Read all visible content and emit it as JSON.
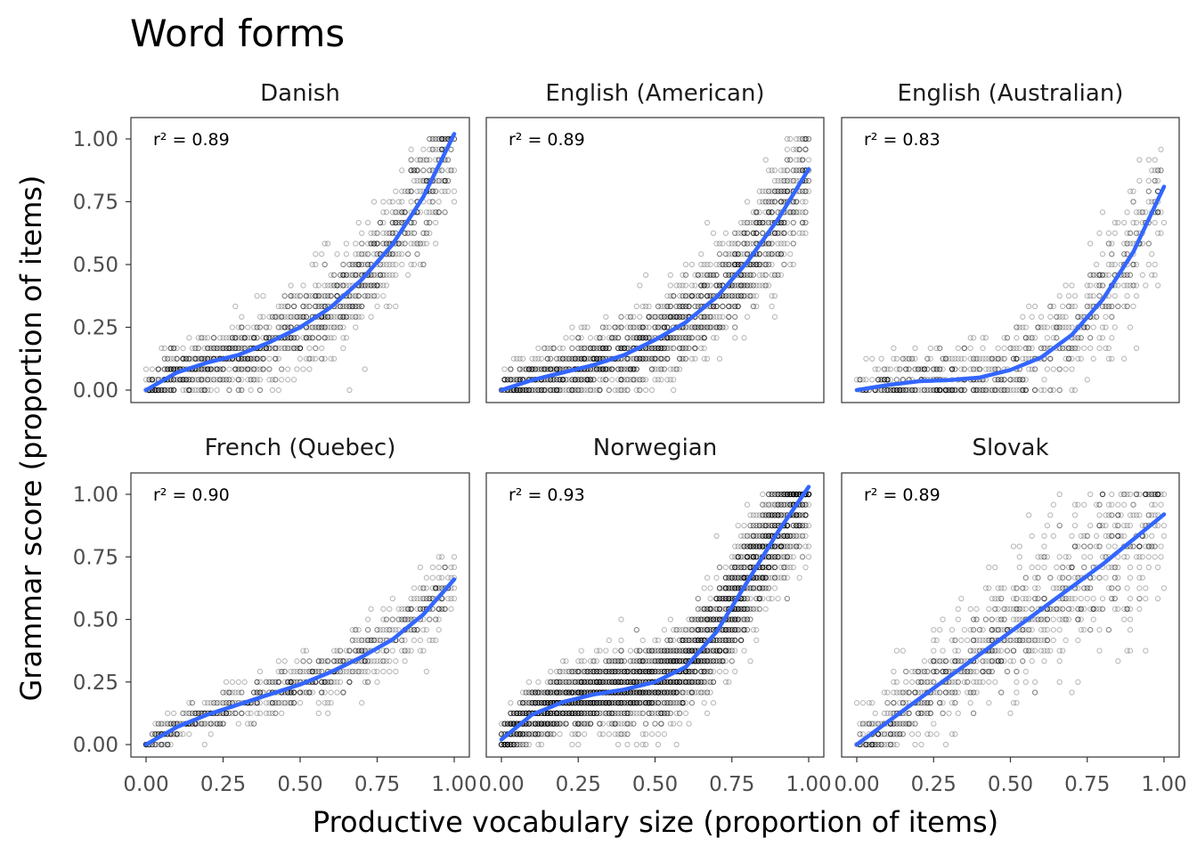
{
  "chart_data": {
    "type": "scatter",
    "title": "Word forms",
    "xlabel": "Productive vocabulary size (proportion of items)",
    "ylabel": "Grammar score (proportion of items)",
    "xlim": [
      0,
      1
    ],
    "ylim": [
      0,
      1
    ],
    "x_ticks": [
      "0.00",
      "0.25",
      "0.50",
      "0.75",
      "1.00"
    ],
    "y_ticks": [
      "0.00",
      "0.25",
      "0.50",
      "0.75",
      "1.00"
    ],
    "grid": false,
    "point_color": "#000000",
    "fit_color": "#3366FF",
    "panels": [
      {
        "name": "Danish",
        "r2_label": "r² = 0.89",
        "fit": {
          "x": [
            0,
            0.1,
            0.2,
            0.3,
            0.4,
            0.5,
            0.6,
            0.7,
            0.8,
            0.9,
            1.0
          ],
          "y": [
            0.0,
            0.07,
            0.11,
            0.14,
            0.19,
            0.25,
            0.33,
            0.44,
            0.58,
            0.77,
            1.02
          ]
        },
        "points": {
          "shape": "linear-increasing",
          "n": 1400,
          "x_range": [
            0,
            1
          ],
          "noise": 0.1
        }
      },
      {
        "name": "English (American)",
        "r2_label": "r² = 0.89",
        "fit": {
          "x": [
            0,
            0.1,
            0.2,
            0.3,
            0.4,
            0.5,
            0.6,
            0.7,
            0.8,
            0.9,
            1.0
          ],
          "y": [
            0.0,
            0.04,
            0.07,
            0.1,
            0.14,
            0.2,
            0.27,
            0.37,
            0.51,
            0.68,
            0.88
          ]
        },
        "points": {
          "shape": "curved-increasing",
          "n": 1800,
          "x_range": [
            0,
            1
          ],
          "noise": 0.1
        }
      },
      {
        "name": "English (Australian)",
        "r2_label": "r² = 0.83",
        "fit": {
          "x": [
            0,
            0.1,
            0.2,
            0.3,
            0.4,
            0.5,
            0.6,
            0.7,
            0.8,
            0.9,
            1.0
          ],
          "y": [
            0.0,
            0.02,
            0.035,
            0.04,
            0.05,
            0.08,
            0.13,
            0.22,
            0.36,
            0.55,
            0.81
          ]
        },
        "points": {
          "shape": "curved-increasing",
          "n": 800,
          "x_range": [
            0,
            1
          ],
          "noise": 0.11
        }
      },
      {
        "name": "French (Quebec)",
        "r2_label": "r² = 0.90",
        "fit": {
          "x": [
            0,
            0.1,
            0.2,
            0.3,
            0.4,
            0.5,
            0.6,
            0.7,
            0.8,
            0.9,
            1.0
          ],
          "y": [
            0.0,
            0.07,
            0.12,
            0.16,
            0.2,
            0.24,
            0.29,
            0.35,
            0.42,
            0.52,
            0.66
          ]
        },
        "points": {
          "shape": "linear-increasing",
          "n": 800,
          "x_range": [
            0,
            1
          ],
          "noise": 0.06
        }
      },
      {
        "name": "Norwegian",
        "r2_label": "r² = 0.93",
        "fit": {
          "x": [
            0,
            0.1,
            0.2,
            0.3,
            0.4,
            0.5,
            0.6,
            0.7,
            0.8,
            0.9,
            1.0
          ],
          "y": [
            0.02,
            0.12,
            0.17,
            0.2,
            0.22,
            0.25,
            0.31,
            0.45,
            0.65,
            0.85,
            1.03
          ]
        },
        "points": {
          "shape": "curved-increasing",
          "n": 3500,
          "x_range": [
            0,
            1
          ],
          "noise": 0.1
        }
      },
      {
        "name": "Slovak",
        "r2_label": "r² = 0.89",
        "fit": {
          "x": [
            0,
            0.1,
            0.2,
            0.3,
            0.4,
            0.5,
            0.6,
            0.7,
            0.8,
            0.9,
            1.0
          ],
          "y": [
            0.0,
            0.09,
            0.18,
            0.27,
            0.36,
            0.45,
            0.54,
            0.63,
            0.72,
            0.82,
            0.92
          ]
        },
        "points": {
          "shape": "linear-increasing",
          "n": 1000,
          "x_range": [
            0,
            1
          ],
          "noise": 0.15
        }
      }
    ]
  }
}
